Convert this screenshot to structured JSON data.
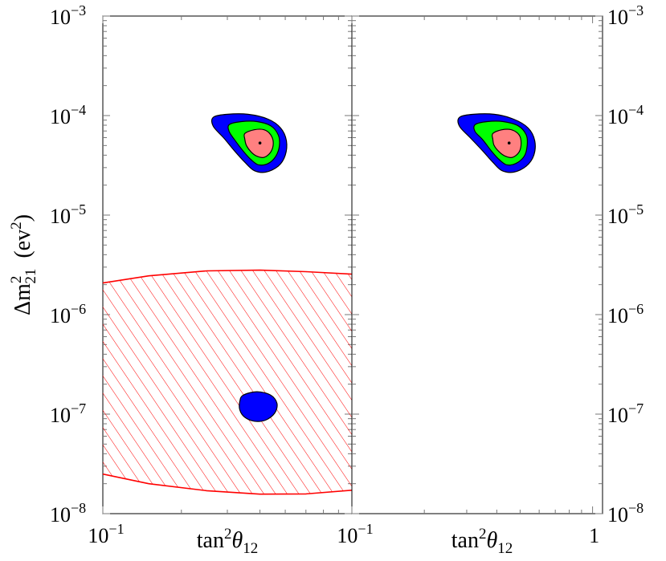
{
  "chart_data": [
    {
      "panel": "left",
      "type": "scatter",
      "x_scale": "log",
      "y_scale": "log",
      "xlim": [
        0.1,
        0.9
      ],
      "ylim": [
        1e-08,
        0.001
      ],
      "xlabel": "tan²θ₁₂",
      "xlabel_parts": {
        "base": "tan",
        "sup": "2",
        "var": "θ",
        "sub": "12"
      },
      "ylabel": "Δm²₂₁ (ev²)",
      "ylabel_parts": {
        "base": "Δm",
        "sup": "2",
        "sub": "21",
        "unit_base": "(ev",
        "unit_sup": "2",
        "unit_close": ")"
      },
      "x_tick_labels": [
        {
          "value": 0.1,
          "base": "10",
          "exp": "−1"
        }
      ],
      "y_tick_labels": [
        {
          "value": 0.001,
          "base": "10",
          "exp": "−3"
        },
        {
          "value": 0.0001,
          "base": "10",
          "exp": "−4"
        },
        {
          "value": 1e-05,
          "base": "10",
          "exp": "−5"
        },
        {
          "value": 1e-06,
          "base": "10",
          "exp": "−6"
        },
        {
          "value": 1e-07,
          "base": "10",
          "exp": "−7"
        },
        {
          "value": 1e-08,
          "base": "10",
          "exp": "−8"
        }
      ],
      "best_fit": {
        "x": 0.4,
        "y": 5.3e-05
      },
      "contours": [
        {
          "level": "outer",
          "color": "#0000ff",
          "points": [
            [
              0.265,
              9.6e-05
            ],
            [
              0.3,
              0.000103
            ],
            [
              0.36,
              0.000103
            ],
            [
              0.43,
              9.2e-05
            ],
            [
              0.48,
              7.5e-05
            ],
            [
              0.505,
              5.6e-05
            ],
            [
              0.5,
              4e-05
            ],
            [
              0.47,
              3.1e-05
            ],
            [
              0.42,
              2.7e-05
            ],
            [
              0.38,
              2.8e-05
            ],
            [
              0.35,
              3.4e-05
            ],
            [
              0.32,
              4.4e-05
            ],
            [
              0.29,
              6e-05
            ],
            [
              0.265,
              7.8e-05
            ]
          ]
        },
        {
          "level": "middle",
          "color": "#00ff00",
          "points": [
            [
              0.305,
              8.1e-05
            ],
            [
              0.34,
              8.7e-05
            ],
            [
              0.39,
              8.7e-05
            ],
            [
              0.44,
              7.9e-05
            ],
            [
              0.47,
              6.4e-05
            ],
            [
              0.475,
              5e-05
            ],
            [
              0.46,
              3.9e-05
            ],
            [
              0.43,
              3.3e-05
            ],
            [
              0.395,
              3.2e-05
            ],
            [
              0.37,
              3.6e-05
            ],
            [
              0.345,
              4.4e-05
            ],
            [
              0.32,
              5.7e-05
            ],
            [
              0.305,
              6.9e-05
            ]
          ]
        },
        {
          "level": "inner",
          "color": "#ff8080",
          "points": [
            [
              0.35,
              6.6e-05
            ],
            [
              0.38,
              7.2e-05
            ],
            [
              0.415,
              7.2e-05
            ],
            [
              0.44,
              6.4e-05
            ],
            [
              0.45,
              5.3e-05
            ],
            [
              0.44,
              4.3e-05
            ],
            [
              0.415,
              3.8e-05
            ],
            [
              0.39,
              3.9e-05
            ],
            [
              0.37,
              4.3e-05
            ],
            [
              0.355,
              5e-05
            ],
            [
              0.35,
              5.8e-05
            ]
          ]
        },
        {
          "level": "outer",
          "color": "#0000ff",
          "points": [
            [
              0.345,
              1.55e-07
            ],
            [
              0.39,
              1.68e-07
            ],
            [
              0.44,
              1.55e-07
            ],
            [
              0.465,
              1.28e-07
            ],
            [
              0.455,
              1.02e-07
            ],
            [
              0.42,
              8.7e-08
            ],
            [
              0.38,
              8.5e-08
            ],
            [
              0.35,
              9.3e-08
            ],
            [
              0.335,
              1.1e-07
            ],
            [
              0.335,
              1.35e-07
            ]
          ]
        }
      ],
      "excluded_region": {
        "color": "#ff0000",
        "hatched": true,
        "upper_boundary": [
          [
            0.1,
            2.08e-06
          ],
          [
            0.15,
            2.45e-06
          ],
          [
            0.25,
            2.75e-06
          ],
          [
            0.4,
            2.8e-06
          ],
          [
            0.6,
            2.7e-06
          ],
          [
            0.9,
            2.55e-06
          ]
        ],
        "lower_boundary": [
          [
            0.1,
            2.5e-08
          ],
          [
            0.15,
            2e-08
          ],
          [
            0.25,
            1.7e-08
          ],
          [
            0.4,
            1.57e-08
          ],
          [
            0.6,
            1.58e-08
          ],
          [
            0.9,
            1.72e-08
          ]
        ]
      }
    },
    {
      "panel": "right",
      "type": "scatter",
      "x_scale": "log",
      "y_scale": "log",
      "xlim": [
        0.1,
        1.1
      ],
      "ylim": [
        1e-08,
        0.001
      ],
      "xlabel": "tan²θ₁₂",
      "xlabel_parts": {
        "base": "tan",
        "sup": "2",
        "var": "θ",
        "sub": "12"
      },
      "x_tick_labels": [
        {
          "value": 0.1,
          "base": "10",
          "exp": "−1"
        },
        {
          "value": 1,
          "base": "1",
          "exp": ""
        }
      ],
      "y_tick_labels": [
        {
          "value": 0.001,
          "base": "10",
          "exp": "−3"
        },
        {
          "value": 0.0001,
          "base": "10",
          "exp": "−4"
        },
        {
          "value": 1e-05,
          "base": "10",
          "exp": "−5"
        },
        {
          "value": 1e-06,
          "base": "10",
          "exp": "−6"
        },
        {
          "value": 1e-07,
          "base": "10",
          "exp": "−7"
        },
        {
          "value": 1e-08,
          "base": "10",
          "exp": "−8"
        }
      ],
      "best_fit": {
        "x": 0.45,
        "y": 5.3e-05
      },
      "contours": [
        {
          "level": "outer",
          "color": "#0000ff",
          "points": [
            [
              0.28,
              9.6e-05
            ],
            [
              0.32,
              0.000103
            ],
            [
              0.39,
              0.000103
            ],
            [
              0.47,
              9.2e-05
            ],
            [
              0.54,
              7.5e-05
            ],
            [
              0.575,
              5.6e-05
            ],
            [
              0.57,
              4e-05
            ],
            [
              0.53,
              3.1e-05
            ],
            [
              0.47,
              2.7e-05
            ],
            [
              0.42,
              2.8e-05
            ],
            [
              0.385,
              3.4e-05
            ],
            [
              0.35,
              4.4e-05
            ],
            [
              0.31,
              6e-05
            ],
            [
              0.28,
              7.8e-05
            ]
          ]
        },
        {
          "level": "middle",
          "color": "#00ff00",
          "points": [
            [
              0.325,
              8.1e-05
            ],
            [
              0.365,
              8.7e-05
            ],
            [
              0.425,
              8.7e-05
            ],
            [
              0.49,
              7.9e-05
            ],
            [
              0.53,
              6.4e-05
            ],
            [
              0.535,
              5e-05
            ],
            [
              0.52,
              3.9e-05
            ],
            [
              0.48,
              3.3e-05
            ],
            [
              0.44,
              3.2e-05
            ],
            [
              0.41,
              3.6e-05
            ],
            [
              0.38,
              4.4e-05
            ],
            [
              0.35,
              5.7e-05
            ],
            [
              0.325,
              6.9e-05
            ]
          ]
        },
        {
          "level": "inner",
          "color": "#ff8080",
          "points": [
            [
              0.385,
              6.6e-05
            ],
            [
              0.42,
              7.2e-05
            ],
            [
              0.46,
              7.2e-05
            ],
            [
              0.495,
              6.4e-05
            ],
            [
              0.505,
              5.3e-05
            ],
            [
              0.495,
              4.3e-05
            ],
            [
              0.465,
              3.8e-05
            ],
            [
              0.435,
              3.9e-05
            ],
            [
              0.41,
              4.3e-05
            ],
            [
              0.39,
              5e-05
            ],
            [
              0.385,
              5.8e-05
            ]
          ]
        }
      ]
    }
  ]
}
